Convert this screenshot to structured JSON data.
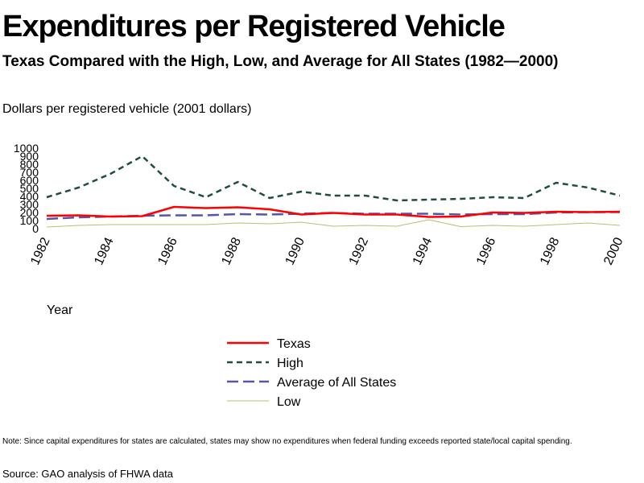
{
  "header": {
    "title": "Expenditures per Registered Vehicle",
    "subtitle": "Texas Compared with the High, Low, and Average for All States (1982—2000)",
    "units": "Dollars per registered vehicle (2001 dollars)"
  },
  "footer": {
    "note": "Note: Since capital expenditures for states are calculated, states may show no expenditures when federal funding exceeds reported state/local capital spending.",
    "source": "Source: GAO analysis of FHWA data"
  },
  "chart_data": {
    "type": "line",
    "title": "Expenditures per Registered Vehicle",
    "subtitle": "Texas Compared with the High, Low, and Average for All States (1982—2000)",
    "ylabel": "Dollars per registered vehicle (2001 dollars)",
    "xlabel": "Year",
    "x": [
      1982,
      1983,
      1984,
      1985,
      1986,
      1987,
      1988,
      1989,
      1990,
      1991,
      1992,
      1993,
      1994,
      1995,
      1996,
      1997,
      1998,
      1999,
      2000
    ],
    "xticks": [
      "1982",
      "1984",
      "1986",
      "1988",
      "1990",
      "1992",
      "1994",
      "1996",
      "1998",
      "2000"
    ],
    "yticks": [
      "0",
      "100",
      "200",
      "300",
      "400",
      "500",
      "600",
      "700",
      "800",
      "900",
      "1000"
    ],
    "ylim": [
      0,
      1000
    ],
    "xlim": [
      1982,
      2000
    ],
    "grid": false,
    "legend_position": "bottom-center",
    "series": [
      {
        "name": "Texas",
        "color": "#ff0000",
        "style": "solid",
        "values": [
          160,
          165,
          150,
          155,
          270,
          255,
          265,
          240,
          175,
          195,
          175,
          175,
          145,
          150,
          200,
          195,
          210,
          205,
          210
        ]
      },
      {
        "name": "High",
        "color": "#1f4e3d",
        "style": "dotted",
        "values": [
          390,
          510,
          680,
          900,
          530,
          390,
          580,
          380,
          460,
          410,
          410,
          350,
          360,
          370,
          390,
          380,
          570,
          510,
          410
        ]
      },
      {
        "name": "Average of All States",
        "color": "#5555aa",
        "style": "dashed",
        "values": [
          120,
          140,
          150,
          160,
          165,
          165,
          180,
          175,
          185,
          195,
          185,
          185,
          185,
          175,
          180,
          180,
          200,
          205,
          205
        ]
      },
      {
        "name": "Low",
        "color": "#b5c26a",
        "style": "solid-thin",
        "values": [
          20,
          40,
          50,
          50,
          50,
          50,
          70,
          60,
          80,
          30,
          40,
          30,
          110,
          25,
          40,
          30,
          50,
          70,
          40
        ]
      }
    ]
  }
}
